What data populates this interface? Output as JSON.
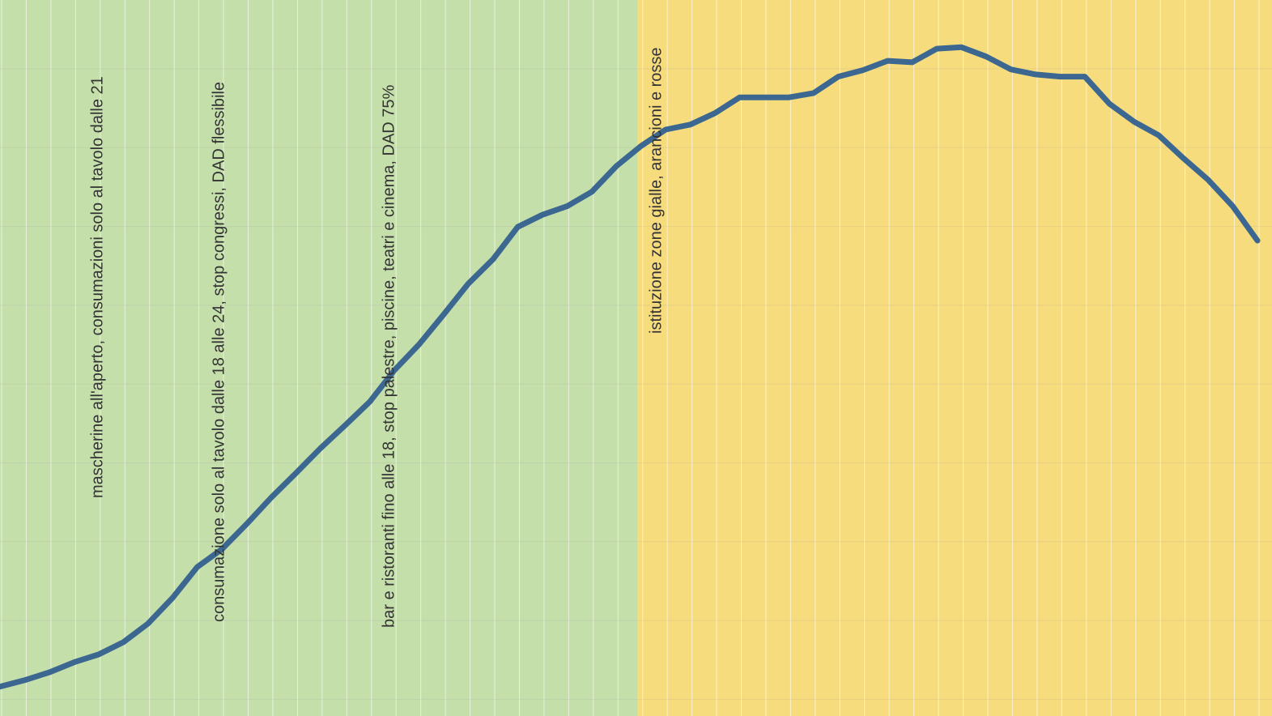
{
  "chart_data": {
    "type": "line",
    "color": "#3b6790",
    "grid": true,
    "ylim": [
      0,
      100
    ],
    "regions": [
      {
        "color": "#c5dfab"
      },
      {
        "color": "#f7dc7e"
      }
    ],
    "annotations": [
      "mascherine all'aperto, consumazioni solo al tavolo dalle 21",
      "consumazione solo al tavolo dalle 18 alle 24, stop congressi, DAD flessibile",
      "bar e ristoranti fino alle 18, stop palestre, piscine, teatri e cinema, DAD 75%",
      "istituzione zone gialle, arancioni e rosse"
    ],
    "values": [
      4.1,
      5.0,
      6.1,
      7.5,
      8.6,
      10.3,
      12.9,
      16.5,
      20.8,
      23.3,
      26.8,
      30.5,
      33.9,
      37.4,
      40.6,
      43.9,
      48.3,
      51.9,
      56.1,
      60.4,
      63.8,
      68.3,
      70.0,
      71.2,
      73.2,
      76.8,
      79.6,
      81.9,
      82.6,
      84.2,
      86.4,
      86.4,
      86.4,
      87.0,
      89.3,
      90.2,
      91.5,
      91.3,
      93.2,
      93.4,
      92.1,
      90.3,
      89.6,
      89.3,
      89.3,
      85.5,
      83.0,
      81.1,
      77.9,
      74.9,
      71.2,
      66.4
    ]
  }
}
